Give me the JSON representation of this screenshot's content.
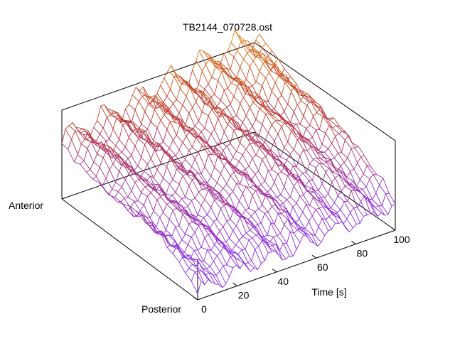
{
  "chart_data": {
    "type": "surface",
    "title": "TB2144_070728.ost",
    "x_axis": {
      "label": "Time [s]",
      "range": [
        0,
        100
      ],
      "ticks": [
        0,
        20,
        40,
        60,
        80,
        100
      ],
      "tick_labels": [
        "0",
        "20",
        "40",
        "60",
        "80",
        "100"
      ]
    },
    "y_axis": {
      "labels": [
        "Anterior",
        "Posterior"
      ]
    },
    "z_axis": {
      "tick_labels": []
    },
    "colors": {
      "low": "#8a2be2",
      "mid": "#c0392b",
      "high": "#f0a000"
    },
    "surface": {
      "x_steps": 56,
      "y_steps": 22,
      "note_values": "height rises from Posterior edge toward Anterior side and increases over Time"
    }
  }
}
